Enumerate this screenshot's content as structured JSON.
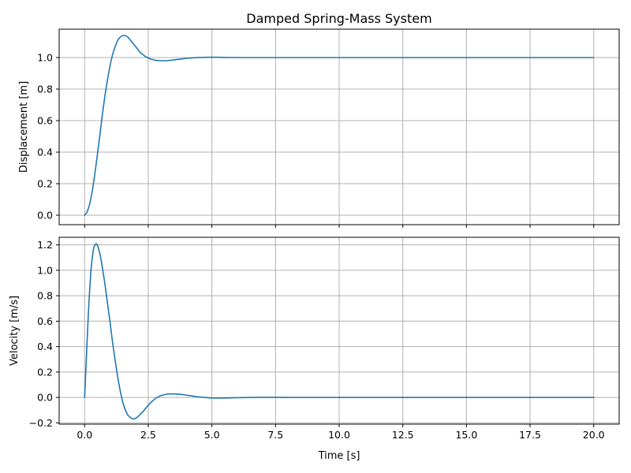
{
  "figure": {
    "title": "Damped Spring-Mass System",
    "line_color": "#1f77b4"
  },
  "chart_data": [
    {
      "type": "line",
      "ylabel": "Displacement [m]",
      "xlabel": "",
      "xlim": [
        -1.0,
        21.0
      ],
      "ylim": [
        -0.06,
        1.18
      ],
      "xticks": [
        0.0,
        2.5,
        5.0,
        7.5,
        10.0,
        12.5,
        15.0,
        17.5,
        20.0
      ],
      "yticks": [
        0.0,
        0.2,
        0.4,
        0.6,
        0.8,
        1.0
      ],
      "ytick_labels": [
        "0.0",
        "0.2",
        "0.4",
        "0.6",
        "0.8",
        "1.0"
      ],
      "grid": true,
      "series": [
        {
          "x": [
            0,
            0.1,
            0.2,
            0.3,
            0.4,
            0.5,
            0.6,
            0.7,
            0.8,
            0.9,
            1.0,
            1.1,
            1.2,
            1.3,
            1.4,
            1.5,
            1.6,
            1.7,
            1.8,
            1.9,
            2.0,
            2.2,
            2.4,
            2.6,
            2.8,
            3.0,
            3.2,
            3.4,
            3.6,
            3.8,
            4.0,
            4.3,
            4.6,
            5.0,
            5.5,
            6.0,
            7.0,
            8.0,
            10.0,
            12.5,
            15.0,
            17.5,
            20.0
          ],
          "y": [
            0,
            0.02,
            0.07,
            0.15,
            0.26,
            0.38,
            0.51,
            0.64,
            0.76,
            0.86,
            0.95,
            1.02,
            1.07,
            1.11,
            1.13,
            1.14,
            1.14,
            1.13,
            1.11,
            1.09,
            1.07,
            1.03,
            1.005,
            0.99,
            0.982,
            0.98,
            0.98,
            0.983,
            0.987,
            0.991,
            0.995,
            0.999,
            1.001,
            1.002,
            1.001,
            1.0,
            1.0,
            1.0,
            1.0,
            1.0,
            1.0,
            1.0,
            1.0
          ]
        }
      ]
    },
    {
      "type": "line",
      "ylabel": "Velocity [m/s]",
      "xlabel": "Time [s]",
      "xlim": [
        -1.0,
        21.0
      ],
      "ylim": [
        -0.21,
        1.26
      ],
      "xticks": [
        0.0,
        2.5,
        5.0,
        7.5,
        10.0,
        12.5,
        15.0,
        17.5,
        20.0
      ],
      "xtick_labels": [
        "0.0",
        "2.5",
        "5.0",
        "7.5",
        "10.0",
        "12.5",
        "15.0",
        "17.5",
        "20.0"
      ],
      "yticks": [
        -0.2,
        0.0,
        0.2,
        0.4,
        0.6,
        0.8,
        1.0,
        1.2
      ],
      "ytick_labels": [
        "−0.2",
        "0.0",
        "0.2",
        "0.4",
        "0.6",
        "0.8",
        "1.0",
        "1.2"
      ],
      "grid": true,
      "series": [
        {
          "x": [
            0,
            0.05,
            0.1,
            0.15,
            0.2,
            0.25,
            0.3,
            0.35,
            0.4,
            0.45,
            0.5,
            0.55,
            0.6,
            0.65,
            0.7,
            0.8,
            0.9,
            1.0,
            1.1,
            1.2,
            1.3,
            1.4,
            1.5,
            1.6,
            1.7,
            1.8,
            1.9,
            2.0,
            2.1,
            2.2,
            2.3,
            2.4,
            2.6,
            2.8,
            3.0,
            3.2,
            3.4,
            3.6,
            3.8,
            4.0,
            4.2,
            4.4,
            4.6,
            4.8,
            5.0,
            5.3,
            5.6,
            6.0,
            6.5,
            7.0,
            8.0,
            10.0,
            12.5,
            15.0,
            17.5,
            20.0
          ],
          "y": [
            0,
            0.22,
            0.45,
            0.67,
            0.85,
            1.0,
            1.1,
            1.17,
            1.2,
            1.21,
            1.2,
            1.17,
            1.13,
            1.08,
            1.02,
            0.89,
            0.74,
            0.59,
            0.43,
            0.29,
            0.16,
            0.05,
            -0.04,
            -0.1,
            -0.14,
            -0.16,
            -0.17,
            -0.165,
            -0.15,
            -0.13,
            -0.11,
            -0.085,
            -0.04,
            -0.005,
            0.015,
            0.025,
            0.028,
            0.027,
            0.024,
            0.018,
            0.012,
            0.006,
            0.002,
            -0.002,
            -0.004,
            -0.005,
            -0.004,
            -0.002,
            0.0,
            0.001,
            0.0,
            0.0,
            0.0,
            0.0,
            0.0,
            0.0
          ]
        }
      ]
    }
  ]
}
